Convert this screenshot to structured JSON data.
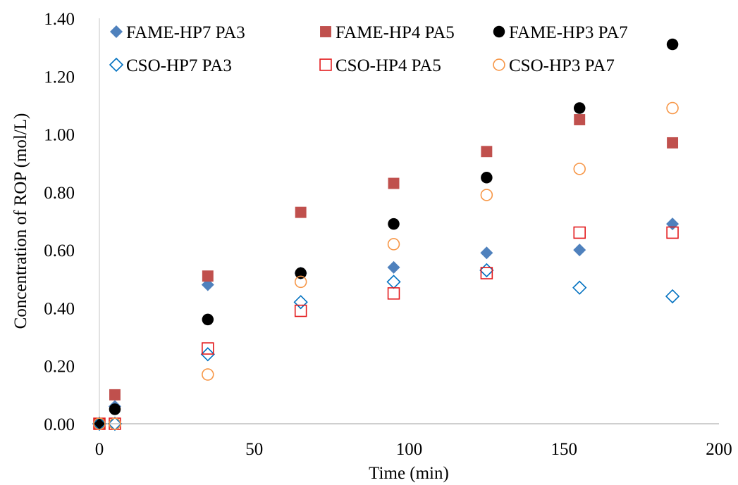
{
  "chart_data": {
    "type": "scatter",
    "title": "",
    "xlabel": "Time (min)",
    "ylabel": "Concentration of ROP (mol/L)",
    "xlim": [
      0,
      200
    ],
    "ylim": [
      0,
      1.4
    ],
    "xticks": [
      0,
      50,
      100,
      150,
      200
    ],
    "xtick_labels": [
      "0",
      "50",
      "100",
      "150",
      "200"
    ],
    "yticks": [
      0,
      0.2,
      0.4,
      0.6,
      0.8,
      1.0,
      1.2,
      1.4
    ],
    "ytick_labels": [
      "0.00",
      "0.20",
      "0.40",
      "0.60",
      "0.80",
      "1.00",
      "1.20",
      "1.40"
    ],
    "grid": false,
    "legend_position": "top",
    "x": [
      0,
      5,
      35,
      65,
      95,
      125,
      155,
      185
    ],
    "series": [
      {
        "name": "FAME-HP7 PA3",
        "marker": "diamond",
        "filled": true,
        "color": "#4F81BD",
        "values": [
          0,
          0.06,
          0.48,
          0.52,
          0.54,
          0.59,
          0.6,
          0.69
        ]
      },
      {
        "name": "FAME-HP4 PA5",
        "marker": "square",
        "filled": true,
        "color": "#C0504D",
        "values": [
          0,
          0.1,
          0.51,
          0.73,
          0.83,
          0.94,
          1.05,
          0.97
        ]
      },
      {
        "name": "FAME-HP3 PA7",
        "marker": "circle",
        "filled": true,
        "color": "#000000",
        "values": [
          0,
          0.05,
          0.36,
          0.52,
          0.69,
          0.85,
          1.09,
          1.31
        ]
      },
      {
        "name": "CSO-HP7 PA3",
        "marker": "diamond",
        "filled": false,
        "color": "#0070C0",
        "values": [
          0,
          0,
          0.24,
          0.42,
          0.49,
          0.53,
          0.47,
          0.44
        ]
      },
      {
        "name": "CSO-HP4 PA5",
        "marker": "square",
        "filled": false,
        "color": "#E31A1C",
        "values": [
          0,
          0,
          0.26,
          0.39,
          0.45,
          0.52,
          0.66,
          0.66
        ]
      },
      {
        "name": "CSO-HP3 PA7",
        "marker": "circle",
        "filled": false,
        "color": "#F79646",
        "values": [
          0,
          0,
          0.17,
          0.49,
          0.62,
          0.79,
          0.88,
          1.09
        ]
      }
    ]
  }
}
